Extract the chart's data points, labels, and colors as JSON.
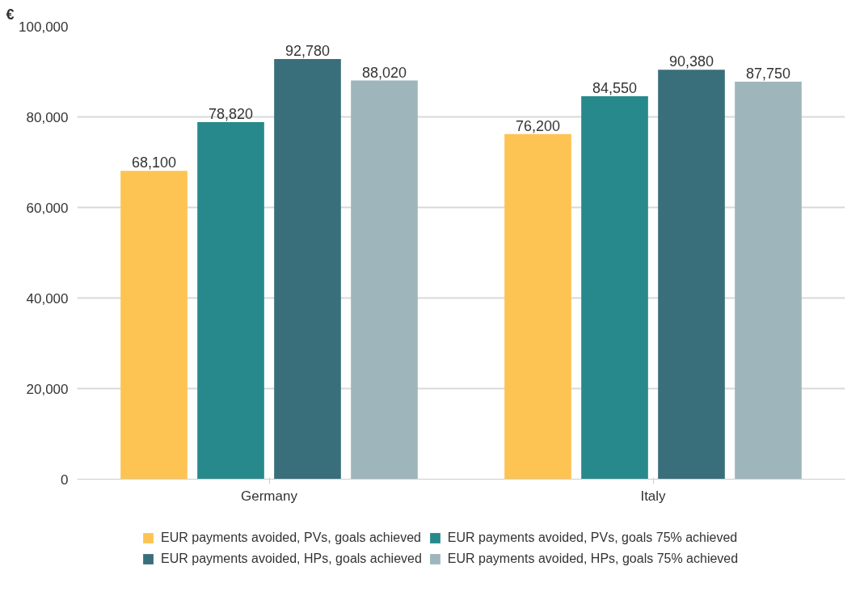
{
  "chart_data": {
    "type": "bar",
    "ylabel": "€",
    "categories": [
      "Germany",
      "Italy"
    ],
    "series": [
      {
        "name": "EUR payments avoided, PVs, goals achieved",
        "color": "#fdc453",
        "values": [
          68100,
          76200
        ],
        "value_labels": [
          "68,100",
          "76,200"
        ]
      },
      {
        "name": "EUR payments avoided, PVs, goals 75% achieved",
        "color": "#27898b",
        "values": [
          78820,
          84550
        ],
        "value_labels": [
          "78,820",
          "84,550"
        ]
      },
      {
        "name": "EUR payments avoided, HPs, goals achieved",
        "color": "#386f7a",
        "values": [
          92780,
          90380
        ],
        "value_labels": [
          "92,780",
          "90,380"
        ]
      },
      {
        "name": "EUR payments avoided, HPs, goals 75% achieved",
        "color": "#9eb5bc",
        "values": [
          88020,
          87750
        ],
        "value_labels": [
          "88,020",
          "87,750"
        ]
      }
    ],
    "ylim": [
      0,
      100000
    ],
    "yticks": [
      {
        "value": 0,
        "label": "0"
      },
      {
        "value": 20000,
        "label": "20,000"
      },
      {
        "value": 40000,
        "label": "40,000"
      },
      {
        "value": 60000,
        "label": "60,000"
      },
      {
        "value": 80000,
        "label": "80,000"
      },
      {
        "value": 100000,
        "label": "100,000"
      }
    ],
    "grid": "y",
    "legend": "bottom"
  }
}
